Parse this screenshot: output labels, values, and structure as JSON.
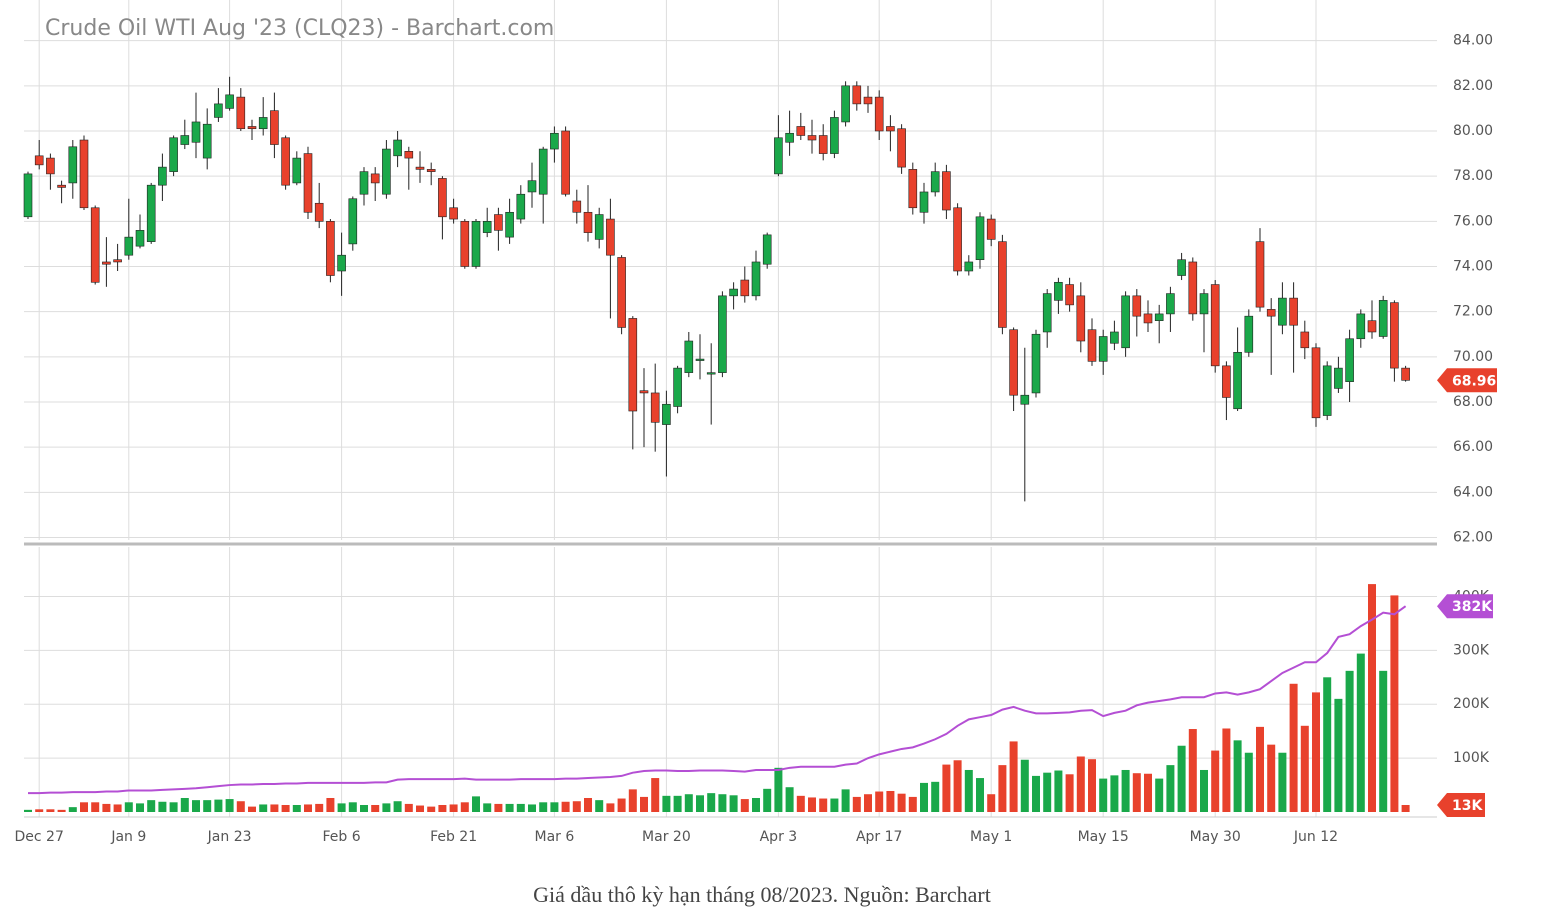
{
  "chart_data": {
    "type": "candlestick",
    "title": "Crude Oil WTI Aug '23 (CLQ23) - Barchart.com",
    "categories": [
      null,
      "Dec 27",
      null,
      null,
      null,
      null,
      null,
      null,
      null,
      "Jan 9",
      null,
      null,
      null,
      null,
      null,
      null,
      null,
      null,
      "Jan 23",
      null,
      null,
      null,
      null,
      null,
      null,
      null,
      null,
      null,
      "Feb 6",
      null,
      null,
      null,
      null,
      null,
      null,
      null,
      null,
      null,
      "Feb 21",
      null,
      null,
      null,
      null,
      null,
      null,
      null,
      null,
      "Mar 6",
      null,
      null,
      null,
      null,
      null,
      null,
      null,
      null,
      null,
      "Mar 20",
      null,
      null,
      null,
      null,
      null,
      null,
      null,
      null,
      null,
      "Apr 3",
      null,
      null,
      null,
      null,
      null,
      null,
      null,
      null,
      "Apr 17",
      null,
      null,
      null,
      null,
      null,
      null,
      null,
      null,
      null,
      "May 1",
      null,
      null,
      null,
      null,
      null,
      null,
      null,
      null,
      null,
      "May 15",
      null,
      null,
      null,
      null,
      null,
      null,
      null,
      null,
      null,
      "May 30",
      null,
      null,
      null,
      null,
      null,
      null,
      null,
      null,
      "Jun 12",
      null,
      null,
      null,
      null,
      null,
      null,
      null,
      null
    ],
    "open": [
      76.2,
      78.9,
      78.8,
      77.6,
      77.7,
      79.6,
      76.6,
      74.2,
      74.3,
      74.5,
      74.9,
      75.1,
      77.6,
      78.2,
      79.4,
      79.5,
      78.8,
      80.6,
      81.0,
      81.5,
      80.2,
      80.1,
      80.9,
      79.7,
      77.7,
      79.0,
      76.8,
      76.0,
      73.8,
      75.0,
      77.2,
      78.1,
      77.2,
      78.9,
      79.1,
      78.4,
      78.3,
      77.9,
      76.6,
      76.0,
      74.0,
      75.5,
      76.3,
      75.3,
      76.1,
      77.3,
      77.2,
      79.2,
      80.0,
      76.9,
      76.4,
      75.2,
      76.1,
      74.4,
      71.7,
      68.5,
      68.4,
      67.0,
      67.8,
      69.3,
      69.9,
      69.3,
      69.3,
      72.7,
      73.4,
      72.7,
      74.1,
      78.1,
      79.5,
      80.2,
      79.8,
      79.8,
      79.0,
      80.4,
      82.0,
      81.5,
      81.5,
      80.2,
      80.1,
      78.3,
      76.4,
      77.3,
      78.2,
      76.6,
      73.8,
      74.3,
      76.1,
      75.1,
      71.2,
      67.9,
      68.4,
      71.1,
      72.5,
      73.2,
      72.7,
      71.2,
      69.8,
      70.6,
      70.4,
      72.7,
      71.9,
      71.6,
      71.9,
      73.6,
      74.2,
      71.9,
      73.2,
      69.6,
      67.7,
      70.2,
      75.1,
      72.1,
      71.4,
      72.6,
      71.1,
      70.4,
      67.4,
      68.6,
      68.9,
      70.8,
      71.6,
      70.9,
      72.4,
      69.5
    ],
    "high": [
      78.2,
      79.6,
      79.0,
      77.8,
      79.6,
      79.8,
      76.7,
      75.3,
      75.0,
      77.0,
      76.3,
      77.7,
      79.0,
      79.8,
      80.5,
      81.7,
      81.0,
      81.9,
      82.4,
      81.9,
      80.5,
      81.5,
      81.7,
      79.8,
      79.1,
      79.3,
      77.7,
      76.1,
      75.5,
      77.1,
      78.4,
      78.4,
      79.6,
      80.0,
      79.3,
      79.1,
      78.6,
      78.0,
      77.0,
      76.1,
      76.1,
      76.6,
      76.6,
      77.0,
      77.6,
      78.6,
      79.3,
      80.2,
      80.2,
      77.4,
      77.6,
      76.6,
      77.0,
      74.5,
      71.8,
      69.5,
      69.7,
      68.5,
      69.6,
      71.1,
      71.0,
      70.6,
      72.9,
      73.3,
      74.0,
      74.7,
      75.5,
      80.7,
      80.9,
      80.8,
      80.5,
      80.3,
      80.9,
      82.2,
      82.2,
      82.0,
      81.8,
      80.7,
      80.3,
      78.6,
      77.7,
      78.6,
      78.5,
      76.8,
      74.5,
      76.4,
      76.3,
      75.4,
      71.3,
      70.4,
      71.2,
      73.0,
      73.5,
      73.5,
      73.3,
      71.7,
      71.2,
      71.6,
      72.9,
      73.0,
      72.5,
      72.3,
      73.1,
      74.6,
      74.4,
      73.0,
      73.4,
      69.8,
      71.3,
      72.1,
      75.7,
      72.6,
      73.3,
      73.3,
      71.6,
      70.6,
      69.8,
      70.0,
      71.2,
      72.1,
      72.5,
      72.7,
      72.5,
      69.6
    ],
    "low": [
      76.1,
      78.3,
      77.4,
      76.8,
      77.0,
      76.5,
      73.2,
      73.1,
      73.8,
      74.3,
      74.8,
      75.0,
      76.9,
      78.0,
      79.2,
      78.8,
      78.3,
      80.4,
      80.9,
      80.0,
      79.6,
      79.8,
      78.8,
      77.4,
      77.6,
      76.1,
      75.7,
      73.3,
      72.7,
      74.7,
      76.7,
      76.9,
      77.0,
      78.4,
      77.4,
      77.7,
      77.6,
      75.2,
      75.9,
      73.9,
      73.9,
      75.3,
      74.7,
      75.0,
      75.9,
      76.6,
      75.9,
      78.6,
      77.1,
      75.9,
      75.1,
      74.8,
      71.7,
      71.0,
      65.9,
      66.0,
      65.8,
      64.7,
      67.5,
      69.1,
      69.0,
      67.0,
      69.1,
      72.1,
      72.4,
      72.5,
      73.9,
      78.0,
      78.9,
      79.6,
      79.0,
      78.7,
      78.8,
      80.2,
      80.9,
      80.8,
      79.6,
      79.1,
      78.1,
      76.3,
      75.9,
      77.1,
      76.1,
      73.6,
      73.6,
      73.9,
      74.9,
      71.0,
      67.6,
      63.6,
      68.2,
      70.4,
      71.9,
      72.0,
      70.2,
      69.6,
      69.2,
      70.3,
      70.0,
      70.9,
      71.1,
      70.6,
      71.1,
      73.4,
      71.6,
      70.2,
      69.3,
      67.2,
      67.6,
      70.0,
      72.0,
      69.2,
      71.0,
      69.3,
      69.9,
      66.9,
      67.2,
      68.4,
      68.0,
      70.4,
      70.8,
      70.8,
      68.9,
      68.9
    ],
    "close": [
      78.1,
      78.5,
      78.1,
      77.5,
      79.3,
      76.6,
      73.3,
      74.1,
      74.2,
      75.3,
      75.6,
      77.6,
      78.4,
      79.7,
      79.8,
      80.4,
      80.3,
      81.2,
      81.6,
      80.1,
      80.1,
      80.6,
      79.4,
      77.6,
      78.8,
      76.4,
      76.0,
      73.6,
      74.5,
      77.0,
      78.2,
      77.7,
      79.2,
      79.6,
      78.8,
      78.3,
      78.2,
      76.2,
      76.1,
      74.0,
      76.0,
      76.0,
      75.6,
      76.4,
      77.2,
      77.8,
      79.2,
      79.9,
      77.2,
      76.4,
      75.5,
      76.3,
      74.5,
      71.3,
      67.6,
      68.4,
      67.1,
      67.9,
      69.5,
      70.7,
      69.9,
      69.3,
      72.7,
      73.0,
      72.7,
      74.2,
      75.4,
      79.7,
      79.9,
      79.8,
      79.6,
      79.0,
      80.6,
      82.0,
      81.2,
      81.2,
      80.0,
      80.0,
      78.4,
      76.6,
      77.3,
      78.2,
      76.5,
      73.8,
      74.2,
      76.2,
      75.2,
      71.3,
      68.3,
      68.3,
      71.0,
      72.8,
      73.3,
      72.3,
      70.7,
      69.8,
      70.9,
      71.1,
      72.7,
      71.8,
      71.5,
      71.9,
      72.8,
      74.3,
      71.9,
      72.8,
      69.6,
      68.2,
      70.2,
      71.8,
      72.2,
      71.8,
      72.6,
      71.4,
      70.4,
      67.3,
      69.6,
      69.5,
      70.8,
      71.9,
      71.1,
      72.5,
      69.5,
      68.96
    ],
    "volume": [
      4,
      5,
      5,
      4,
      9,
      18,
      18,
      15,
      14,
      18,
      16,
      22,
      19,
      18,
      26,
      22,
      22,
      23,
      24,
      20,
      10,
      14,
      14,
      13,
      13,
      14,
      15,
      26,
      16,
      18,
      13,
      13,
      16,
      20,
      15,
      12,
      10,
      13,
      14,
      18,
      29,
      16,
      15,
      15,
      15,
      14,
      18,
      18,
      19,
      20,
      26,
      22,
      16,
      25,
      42,
      28,
      63,
      30,
      30,
      33,
      31,
      35,
      33,
      31,
      24,
      26,
      43,
      82,
      46,
      30,
      27,
      25,
      25,
      42,
      28,
      33,
      38,
      39,
      34,
      28,
      54,
      56,
      88,
      96,
      78,
      63,
      33,
      87,
      131,
      97,
      67,
      73,
      77,
      70,
      103,
      98,
      62,
      68,
      78,
      72,
      71,
      62,
      87,
      123,
      154,
      78,
      114,
      155,
      133,
      110,
      158,
      125,
      110,
      238,
      160,
      222,
      250,
      210,
      262,
      294,
      423,
      262,
      402,
      13
    ],
    "open_interest": [
      35,
      35,
      36,
      36,
      37,
      37,
      37,
      38,
      38,
      40,
      40,
      40,
      41,
      42,
      43,
      44,
      46,
      48,
      50,
      51,
      51,
      52,
      52,
      53,
      53,
      54,
      54,
      54,
      54,
      54,
      54,
      55,
      55,
      60,
      61,
      61,
      61,
      61,
      61,
      62,
      60,
      60,
      60,
      60,
      61,
      61,
      61,
      61,
      62,
      62,
      63,
      64,
      65,
      67,
      73,
      76,
      77,
      77,
      76,
      76,
      77,
      77,
      77,
      76,
      75,
      78,
      78,
      78,
      82,
      84,
      84,
      84,
      84,
      88,
      90,
      100,
      107,
      112,
      117,
      120,
      127,
      135,
      145,
      160,
      172,
      176,
      180,
      190,
      195,
      188,
      183,
      183,
      184,
      185,
      188,
      189,
      178,
      184,
      188,
      198,
      203,
      206,
      209,
      213,
      213,
      213,
      220,
      222,
      218,
      222,
      228,
      243,
      258,
      268,
      278,
      278,
      295,
      325,
      330,
      345,
      357,
      370,
      367,
      382
    ],
    "up_color": "#1aa84a",
    "down_color": "#e8412c",
    "line_color": "#b44fd4",
    "ylim": [
      61.8,
      85.8
    ],
    "yticks": [
      {
        "value": 62,
        "label": "62.00"
      },
      {
        "value": 64,
        "label": "64.00"
      },
      {
        "value": 66,
        "label": "66.00"
      },
      {
        "value": 68,
        "label": "68.00"
      },
      {
        "value": 70,
        "label": "70.00"
      },
      {
        "value": 72,
        "label": "72.00"
      },
      {
        "value": 74,
        "label": "74.00"
      },
      {
        "value": 76,
        "label": "76.00"
      },
      {
        "value": 78,
        "label": "78.00"
      },
      {
        "value": 80,
        "label": "80.00"
      },
      {
        "value": 82,
        "label": "82.00"
      },
      {
        "value": 84,
        "label": "84.00"
      }
    ],
    "volume_ylim": [
      0,
      490
    ],
    "volume_yticks": [
      {
        "value": 100,
        "label": "100K"
      },
      {
        "value": 200,
        "label": "200K"
      },
      {
        "value": 300,
        "label": "300K"
      },
      {
        "value": 400,
        "label": "400K"
      }
    ],
    "price_tag": 68.96,
    "volume_tags": [
      {
        "value": 382,
        "label": "382K",
        "color": "#b44fd4"
      },
      {
        "value": 13,
        "label": "13K",
        "color": "#e8412c"
      }
    ],
    "grid": true
  },
  "caption": "Giá dầu thô kỳ hạn tháng 08/2023. Nguồn: Barchart"
}
